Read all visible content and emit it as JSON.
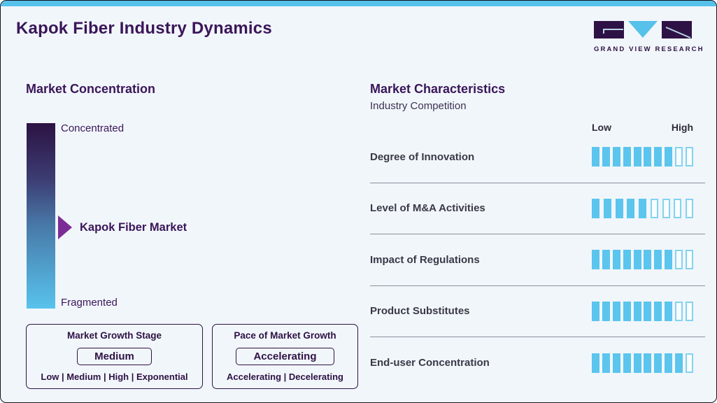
{
  "header": {
    "title": "Kapok Fiber Industry Dynamics",
    "logo_text": "GRAND VIEW RESEARCH"
  },
  "market_concentration": {
    "heading": "Market Concentration",
    "top_label": "Concentrated",
    "bottom_label": "Fragmented",
    "marker_label": "Kapok Fiber Market",
    "marker_position_pct": 56
  },
  "growth_stage_box": {
    "title": "Market Growth Stage",
    "selected": "Medium",
    "options": "Low | Medium | High | Exponential"
  },
  "pace_box": {
    "title": "Pace of Market Growth",
    "selected": "Accelerating",
    "options": "Accelerating | Decelerating"
  },
  "market_characteristics": {
    "heading": "Market Characteristics",
    "subheading": "Industry Competition",
    "scale_low": "Low",
    "scale_high": "High",
    "rows": [
      {
        "label": "Degree of Innovation",
        "filled": 8,
        "total": 10
      },
      {
        "label": "Level of M&A Activities",
        "filled": 5,
        "total": 9
      },
      {
        "label": "Impact of Regulations",
        "filled": 8,
        "total": 10
      },
      {
        "label": "Product Substitutes",
        "filled": 8,
        "total": 10
      },
      {
        "label": "End-user Concentration",
        "filled": 9,
        "total": 10
      }
    ]
  },
  "chart_data": {
    "type": "bar",
    "title": "Market Characteristics",
    "subtitle": "Industry Competition",
    "categories": [
      "Degree of Innovation",
      "Level of M&A Activities",
      "Impact of Regulations",
      "Product Substitutes",
      "End-user Concentration"
    ],
    "series": [
      {
        "name": "filled_segments",
        "values": [
          8,
          5,
          8,
          8,
          9
        ]
      },
      {
        "name": "total_segments",
        "values": [
          10,
          9,
          10,
          10,
          10
        ]
      }
    ],
    "scale_labels": [
      "Low",
      "High"
    ],
    "legend_position": "none",
    "grid": false
  },
  "colors": {
    "accent_blue": "#56c1ea",
    "dark_purple": "#3a1659",
    "logo_purple": "#2e1245",
    "arrow_purple": "#7b2d96",
    "segment_fill": "#5bc5ee",
    "segment_empty_border": "#82d3f2",
    "gradient_top": "#2c1343",
    "gradient_bottom": "#58c3ed",
    "divider": "#8f8e9c",
    "background": "#f1f6fa",
    "text_dark": "#3a3947"
  }
}
